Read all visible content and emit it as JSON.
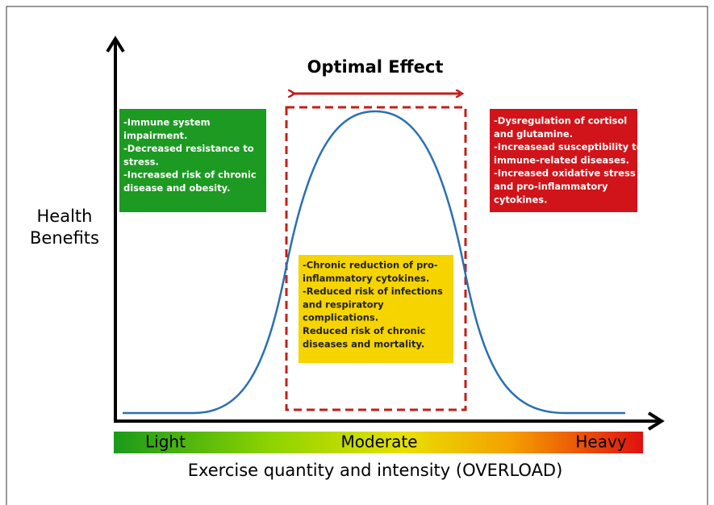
{
  "title": "Optimal Effect",
  "y_axis_label": [
    "Health",
    "Benefits"
  ],
  "x_axis_label": "Exercise quantity and intensity (OVERLOAD)",
  "scale_labels": [
    "Light",
    "Moderate",
    "Heavy"
  ],
  "boxes": [
    {
      "lines": [
        "-Immune system",
        "impairment.",
        "-Decreased resistance to",
        "stress.",
        "-Increased risk of chronic",
        "disease and obesity."
      ]
    },
    {
      "lines": [
        "-Chronic reduction of pro-",
        "inflammatory cytokines.",
        "-Reduced risk of infections",
        "and respiratory",
        "complications.",
        "Reduced risk of chronic",
        "diseases and mortality."
      ]
    },
    {
      "lines": [
        "-Dysregulation of cortisol",
        "and glutamine.",
        "-Increasead susceptibility to",
        "immune-related diseases.",
        "-Increased oxidative stress",
        "and pro-inflammatory",
        "cytokines."
      ]
    }
  ]
}
